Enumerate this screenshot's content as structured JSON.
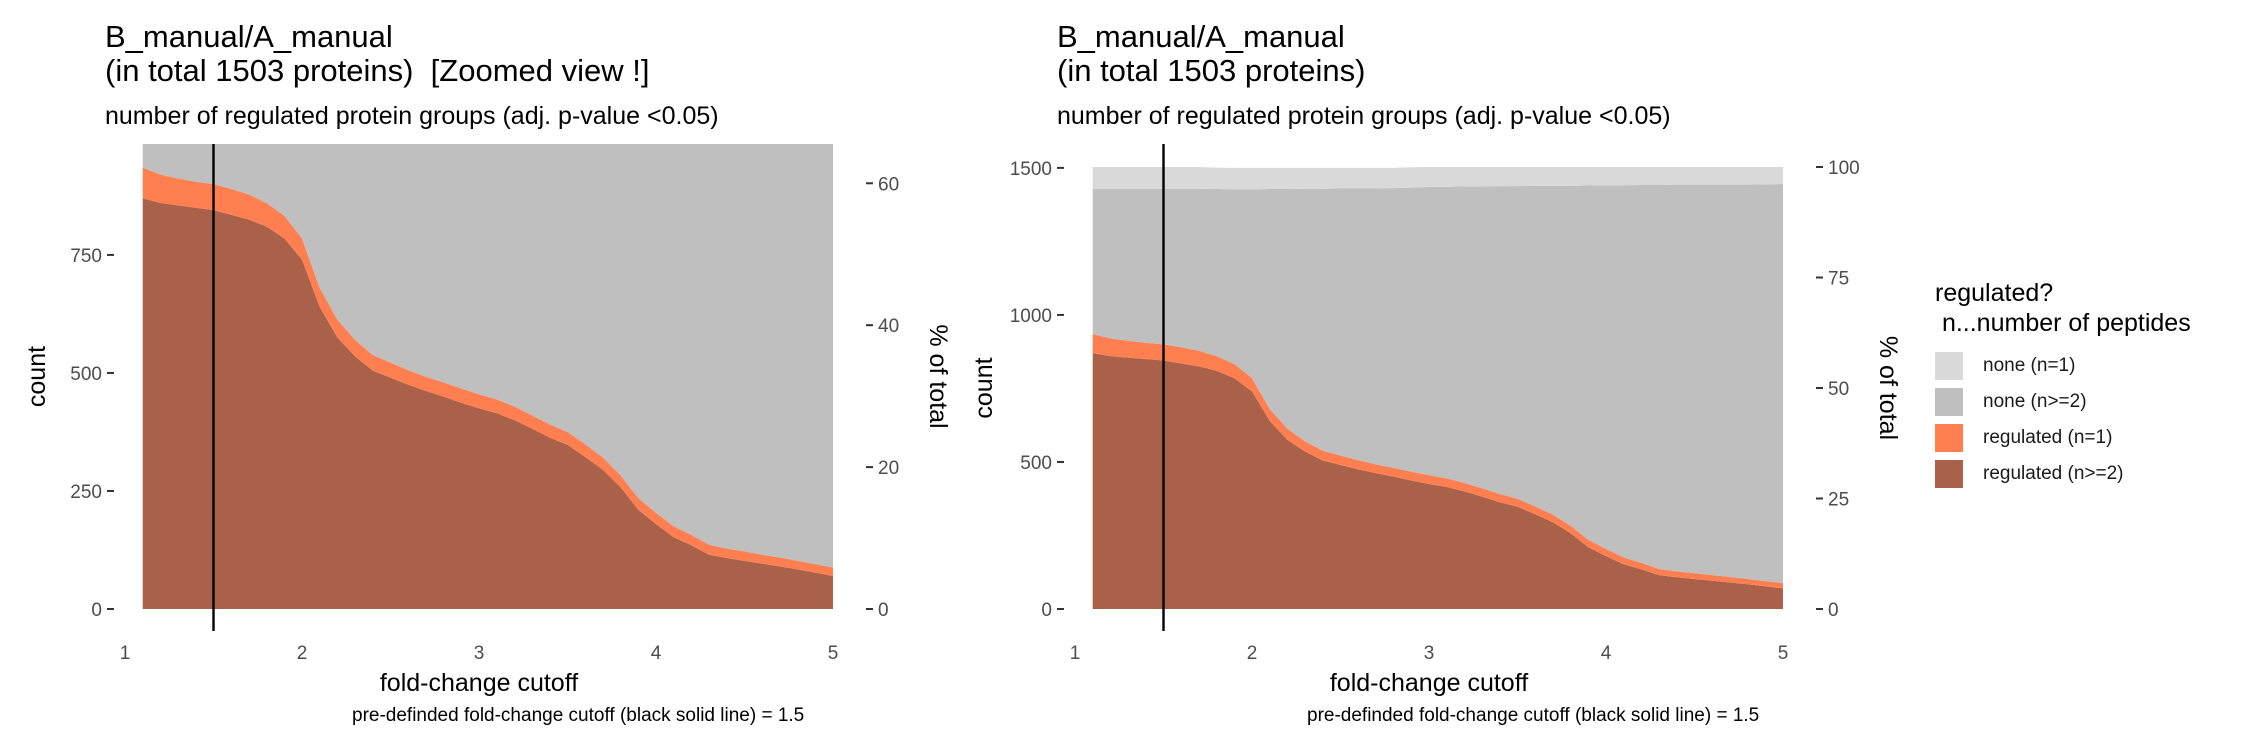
{
  "colors": {
    "none_n1": "#d9d9d9",
    "none_n2": "#bfbfbf",
    "reg_n1": "#ff7f50",
    "reg_n2": "#a9614a",
    "cutoff_line": "#000000",
    "tick_text": "#4d4d4d"
  },
  "legend": {
    "title_line1": "regulated?",
    "title_line2": " n...number of peptides",
    "items": [
      {
        "label": "none (n=1)",
        "color_key": "none_n1"
      },
      {
        "label": "none (n>=2)",
        "color_key": "none_n2"
      },
      {
        "label": "regulated (n=1)",
        "color_key": "reg_n1"
      },
      {
        "label": "regulated (n>=2)",
        "color_key": "reg_n2"
      }
    ]
  },
  "panels": [
    {
      "title_line1": "B_manual/A_manual",
      "title_line2": "(in total 1503 proteins)  [Zoomed view !]",
      "subtitle": "number of regulated protein groups (adj. p-value <0.05)",
      "caption": "pre-definded fold-change cutoff (black solid line) = 1.5"
    },
    {
      "title_line1": "B_manual/A_manual",
      "title_line2": "(in total 1503 proteins)",
      "subtitle": "number of regulated protein groups (adj. p-value <0.05)",
      "caption": "pre-definded fold-change cutoff (black solid line) = 1.5"
    }
  ],
  "chart_data": [
    {
      "type": "area",
      "stacked": true,
      "zoomed": true,
      "xlabel": "fold-change cutoff",
      "ylabel": "count",
      "y2label": "% of total",
      "xlim": [
        1,
        5
      ],
      "ylim": [
        0,
        985
      ],
      "xticks": [
        1,
        2,
        3,
        4,
        5
      ],
      "yticks": [
        0,
        250,
        500,
        750
      ],
      "y2ticks": [
        0,
        20,
        40,
        60
      ],
      "total": 1503,
      "cutoff": 1.5,
      "x": [
        1.1,
        1.2,
        1.3,
        1.4,
        1.5,
        1.6,
        1.7,
        1.8,
        1.9,
        2.0,
        2.1,
        2.2,
        2.3,
        2.4,
        2.5,
        2.6,
        2.7,
        2.8,
        2.9,
        3.0,
        3.1,
        3.2,
        3.3,
        3.4,
        3.5,
        3.6,
        3.7,
        3.8,
        3.9,
        4.0,
        4.1,
        4.2,
        4.3,
        4.4,
        4.5,
        4.6,
        4.7,
        4.8,
        4.9,
        5.0
      ],
      "series": [
        {
          "name": "regulated (n>=2)",
          "color_key": "reg_n2",
          "values": [
            870,
            860,
            855,
            850,
            845,
            835,
            825,
            810,
            785,
            740,
            640,
            575,
            535,
            505,
            490,
            475,
            462,
            450,
            437,
            425,
            415,
            400,
            382,
            363,
            348,
            322,
            295,
            258,
            210,
            180,
            152,
            135,
            115,
            108,
            102,
            96,
            90,
            84,
            77,
            70
          ]
        },
        {
          "name": "regulated (n=1)",
          "color_key": "reg_n1",
          "values": [
            65,
            60,
            57,
            55,
            55,
            55,
            53,
            50,
            48,
            45,
            40,
            38,
            35,
            33,
            32,
            31,
            30,
            30,
            30,
            30,
            29,
            29,
            28,
            28,
            27,
            27,
            26,
            25,
            25,
            24,
            23,
            22,
            21,
            20,
            20,
            19,
            19,
            18,
            18,
            18
          ]
        },
        {
          "name": "none (n>=2)",
          "color_key": "none_n2",
          "values": [
            493,
            509,
            517,
            524,
            529,
            539,
            551,
            568,
            594,
            642,
            748,
            815,
            859,
            891,
            908,
            924,
            938,
            951,
            966,
            980,
            992,
            1008,
            1027,
            1047,
            1063,
            1090,
            1118,
            1156,
            1205,
            1236,
            1266,
            1285,
            1306,
            1315,
            1321,
            1328,
            1334,
            1341,
            1349,
            1357
          ]
        },
        {
          "name": "none (n=1)",
          "color_key": "none_n1",
          "values": [
            75,
            74,
            74,
            74,
            74,
            74,
            74,
            73,
            73,
            73,
            72,
            72,
            71,
            71,
            70,
            70,
            70,
            69,
            69,
            68,
            67,
            66,
            66,
            65,
            65,
            64,
            64,
            64,
            63,
            63,
            62,
            61,
            61,
            60,
            60,
            60,
            60,
            60,
            59,
            58
          ]
        }
      ]
    },
    {
      "type": "area",
      "stacked": true,
      "zoomed": false,
      "xlabel": "fold-change cutoff",
      "ylabel": "count",
      "y2label": "% of total",
      "xlim": [
        1,
        5
      ],
      "ylim": [
        0,
        1503
      ],
      "xticks": [
        1,
        2,
        3,
        4,
        5
      ],
      "yticks": [
        0,
        500,
        1000,
        1500
      ],
      "y2ticks": [
        0,
        25,
        50,
        75,
        100
      ],
      "total": 1503,
      "cutoff": 1.5,
      "x": [
        1.1,
        1.2,
        1.3,
        1.4,
        1.5,
        1.6,
        1.7,
        1.8,
        1.9,
        2.0,
        2.1,
        2.2,
        2.3,
        2.4,
        2.5,
        2.6,
        2.7,
        2.8,
        2.9,
        3.0,
        3.1,
        3.2,
        3.3,
        3.4,
        3.5,
        3.6,
        3.7,
        3.8,
        3.9,
        4.0,
        4.1,
        4.2,
        4.3,
        4.4,
        4.5,
        4.6,
        4.7,
        4.8,
        4.9,
        5.0
      ],
      "series": [
        {
          "name": "regulated (n>=2)",
          "color_key": "reg_n2",
          "values": [
            870,
            860,
            855,
            850,
            845,
            835,
            825,
            810,
            785,
            740,
            640,
            575,
            535,
            505,
            490,
            475,
            462,
            450,
            437,
            425,
            415,
            400,
            382,
            363,
            348,
            322,
            295,
            258,
            210,
            180,
            152,
            135,
            115,
            108,
            102,
            96,
            90,
            84,
            77,
            70
          ]
        },
        {
          "name": "regulated (n=1)",
          "color_key": "reg_n1",
          "values": [
            65,
            60,
            57,
            55,
            55,
            55,
            53,
            50,
            48,
            45,
            40,
            38,
            35,
            33,
            32,
            31,
            30,
            30,
            30,
            30,
            29,
            29,
            28,
            28,
            27,
            27,
            26,
            25,
            25,
            24,
            23,
            22,
            21,
            20,
            20,
            19,
            19,
            18,
            18,
            18
          ]
        },
        {
          "name": "none (n>=2)",
          "color_key": "none_n2",
          "values": [
            493,
            509,
            517,
            524,
            529,
            539,
            551,
            568,
            594,
            642,
            748,
            815,
            859,
            891,
            908,
            924,
            938,
            951,
            966,
            980,
            992,
            1008,
            1027,
            1047,
            1063,
            1090,
            1118,
            1156,
            1205,
            1236,
            1266,
            1285,
            1306,
            1315,
            1321,
            1328,
            1334,
            1341,
            1349,
            1357
          ]
        },
        {
          "name": "none (n=1)",
          "color_key": "none_n1",
          "values": [
            75,
            74,
            74,
            74,
            74,
            74,
            74,
            73,
            73,
            73,
            72,
            72,
            71,
            71,
            70,
            70,
            70,
            69,
            69,
            68,
            67,
            66,
            66,
            65,
            65,
            64,
            64,
            64,
            63,
            63,
            62,
            61,
            61,
            60,
            60,
            60,
            60,
            60,
            59,
            58
          ]
        }
      ]
    }
  ]
}
